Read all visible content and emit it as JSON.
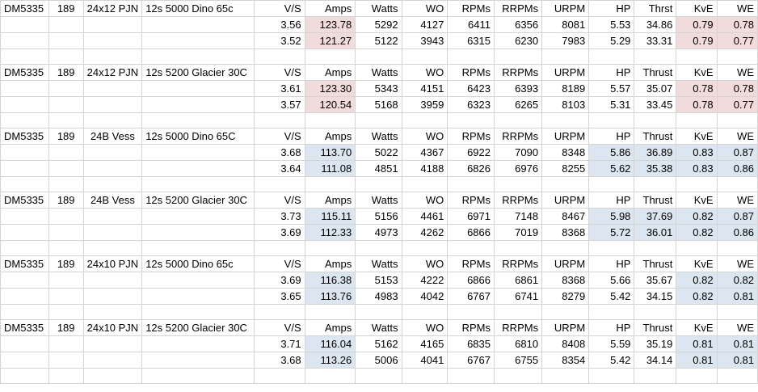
{
  "colors": {
    "pink": "#f2dcdb",
    "blue": "#dce6f1",
    "gridline": "#d4d4d4"
  },
  "blocks": [
    {
      "motor": "DM5335",
      "kv": "189",
      "prop": "24x12 PJN",
      "battery": "12s 5000 Dino 65c",
      "headers": [
        "V/S",
        "Amps",
        "Watts",
        "WO",
        "RPMs",
        "RRPMs",
        "URPM",
        "HP",
        "Thrst",
        "KvE",
        "WE"
      ],
      "rows": [
        [
          "3.56",
          "123.78",
          "5292",
          "4127",
          "6411",
          "6356",
          "8081",
          "5.53",
          "34.86",
          "0.79",
          "0.78"
        ],
        [
          "3.52",
          "121.27",
          "5122",
          "3943",
          "6315",
          "6230",
          "7983",
          "5.29",
          "33.31",
          "0.79",
          "0.77"
        ]
      ]
    },
    {
      "motor": "DM5335",
      "kv": "189",
      "prop": "24x12 PJN",
      "battery": "12s 5200 Glacier 30C",
      "headers": [
        "V/S",
        "Amps",
        "Watts",
        "WO",
        "RPMs",
        "RRPMs",
        "URPM",
        "HP",
        "Thrust",
        "KvE",
        "WE"
      ],
      "rows": [
        [
          "3.61",
          "123.30",
          "5343",
          "4151",
          "6423",
          "6393",
          "8189",
          "5.57",
          "35.07",
          "0.78",
          "0.78"
        ],
        [
          "3.57",
          "120.54",
          "5168",
          "3959",
          "6323",
          "6265",
          "8103",
          "5.31",
          "33.45",
          "0.78",
          "0.77"
        ]
      ]
    },
    {
      "motor": "DM5335",
      "kv": "189",
      "prop": "24B Vess",
      "battery": "12s 5000 Dino 65C",
      "headers": [
        "V/S",
        "Amps",
        "Watts",
        "WO",
        "RPMs",
        "RRPMs",
        "URPM",
        "HP",
        "Thrust",
        "KvE",
        "WE"
      ],
      "rows": [
        [
          "3.68",
          "113.70",
          "5022",
          "4367",
          "6922",
          "7090",
          "8348",
          "5.86",
          "36.89",
          "0.83",
          "0.87"
        ],
        [
          "3.64",
          "111.08",
          "4851",
          "4188",
          "6826",
          "6976",
          "8255",
          "5.62",
          "35.38",
          "0.83",
          "0.86"
        ]
      ]
    },
    {
      "motor": "DM5335",
      "kv": "189",
      "prop": "24B Vess",
      "battery": "12s 5200 Glacier 30C",
      "headers": [
        "V/S",
        "Amps",
        "Watts",
        "WO",
        "RPMs",
        "RRPMs",
        "URPM",
        "HP",
        "Thrust",
        "KvE",
        "WE"
      ],
      "rows": [
        [
          "3.73",
          "115.11",
          "5156",
          "4461",
          "6971",
          "7148",
          "8467",
          "5.98",
          "37.69",
          "0.82",
          "0.87"
        ],
        [
          "3.69",
          "112.33",
          "4973",
          "4262",
          "6866",
          "7019",
          "8368",
          "5.72",
          "36.01",
          "0.82",
          "0.86"
        ]
      ]
    },
    {
      "motor": "DM5335",
      "kv": "189",
      "prop": "24x10 PJN",
      "battery": "12s 5000 Dino 65c",
      "headers": [
        "V/S",
        "Amps",
        "Watts",
        "WO",
        "RPMs",
        "RRPMs",
        "URPM",
        "HP",
        "Thrust",
        "KvE",
        "WE"
      ],
      "rows": [
        [
          "3.69",
          "116.38",
          "5153",
          "4222",
          "6866",
          "6861",
          "8368",
          "5.66",
          "35.67",
          "0.82",
          "0.82"
        ],
        [
          "3.65",
          "113.76",
          "4983",
          "4042",
          "6767",
          "6741",
          "8279",
          "5.42",
          "34.15",
          "0.82",
          "0.81"
        ]
      ]
    },
    {
      "motor": "DM5335",
      "kv": "189",
      "prop": "24x10 PJN",
      "battery": "12s 5200 Glacier 30C",
      "headers": [
        "V/S",
        "Amps",
        "Watts",
        "WO",
        "RPMs",
        "RRPMs",
        "URPM",
        "HP",
        "Thrust",
        "KvE",
        "WE"
      ],
      "rows": [
        [
          "3.71",
          "116.04",
          "5162",
          "4165",
          "6835",
          "6810",
          "8408",
          "5.59",
          "35.19",
          "0.81",
          "0.81"
        ],
        [
          "3.68",
          "113.26",
          "5006",
          "4041",
          "6767",
          "6755",
          "8354",
          "5.42",
          "34.14",
          "0.81",
          "0.81"
        ]
      ]
    }
  ]
}
